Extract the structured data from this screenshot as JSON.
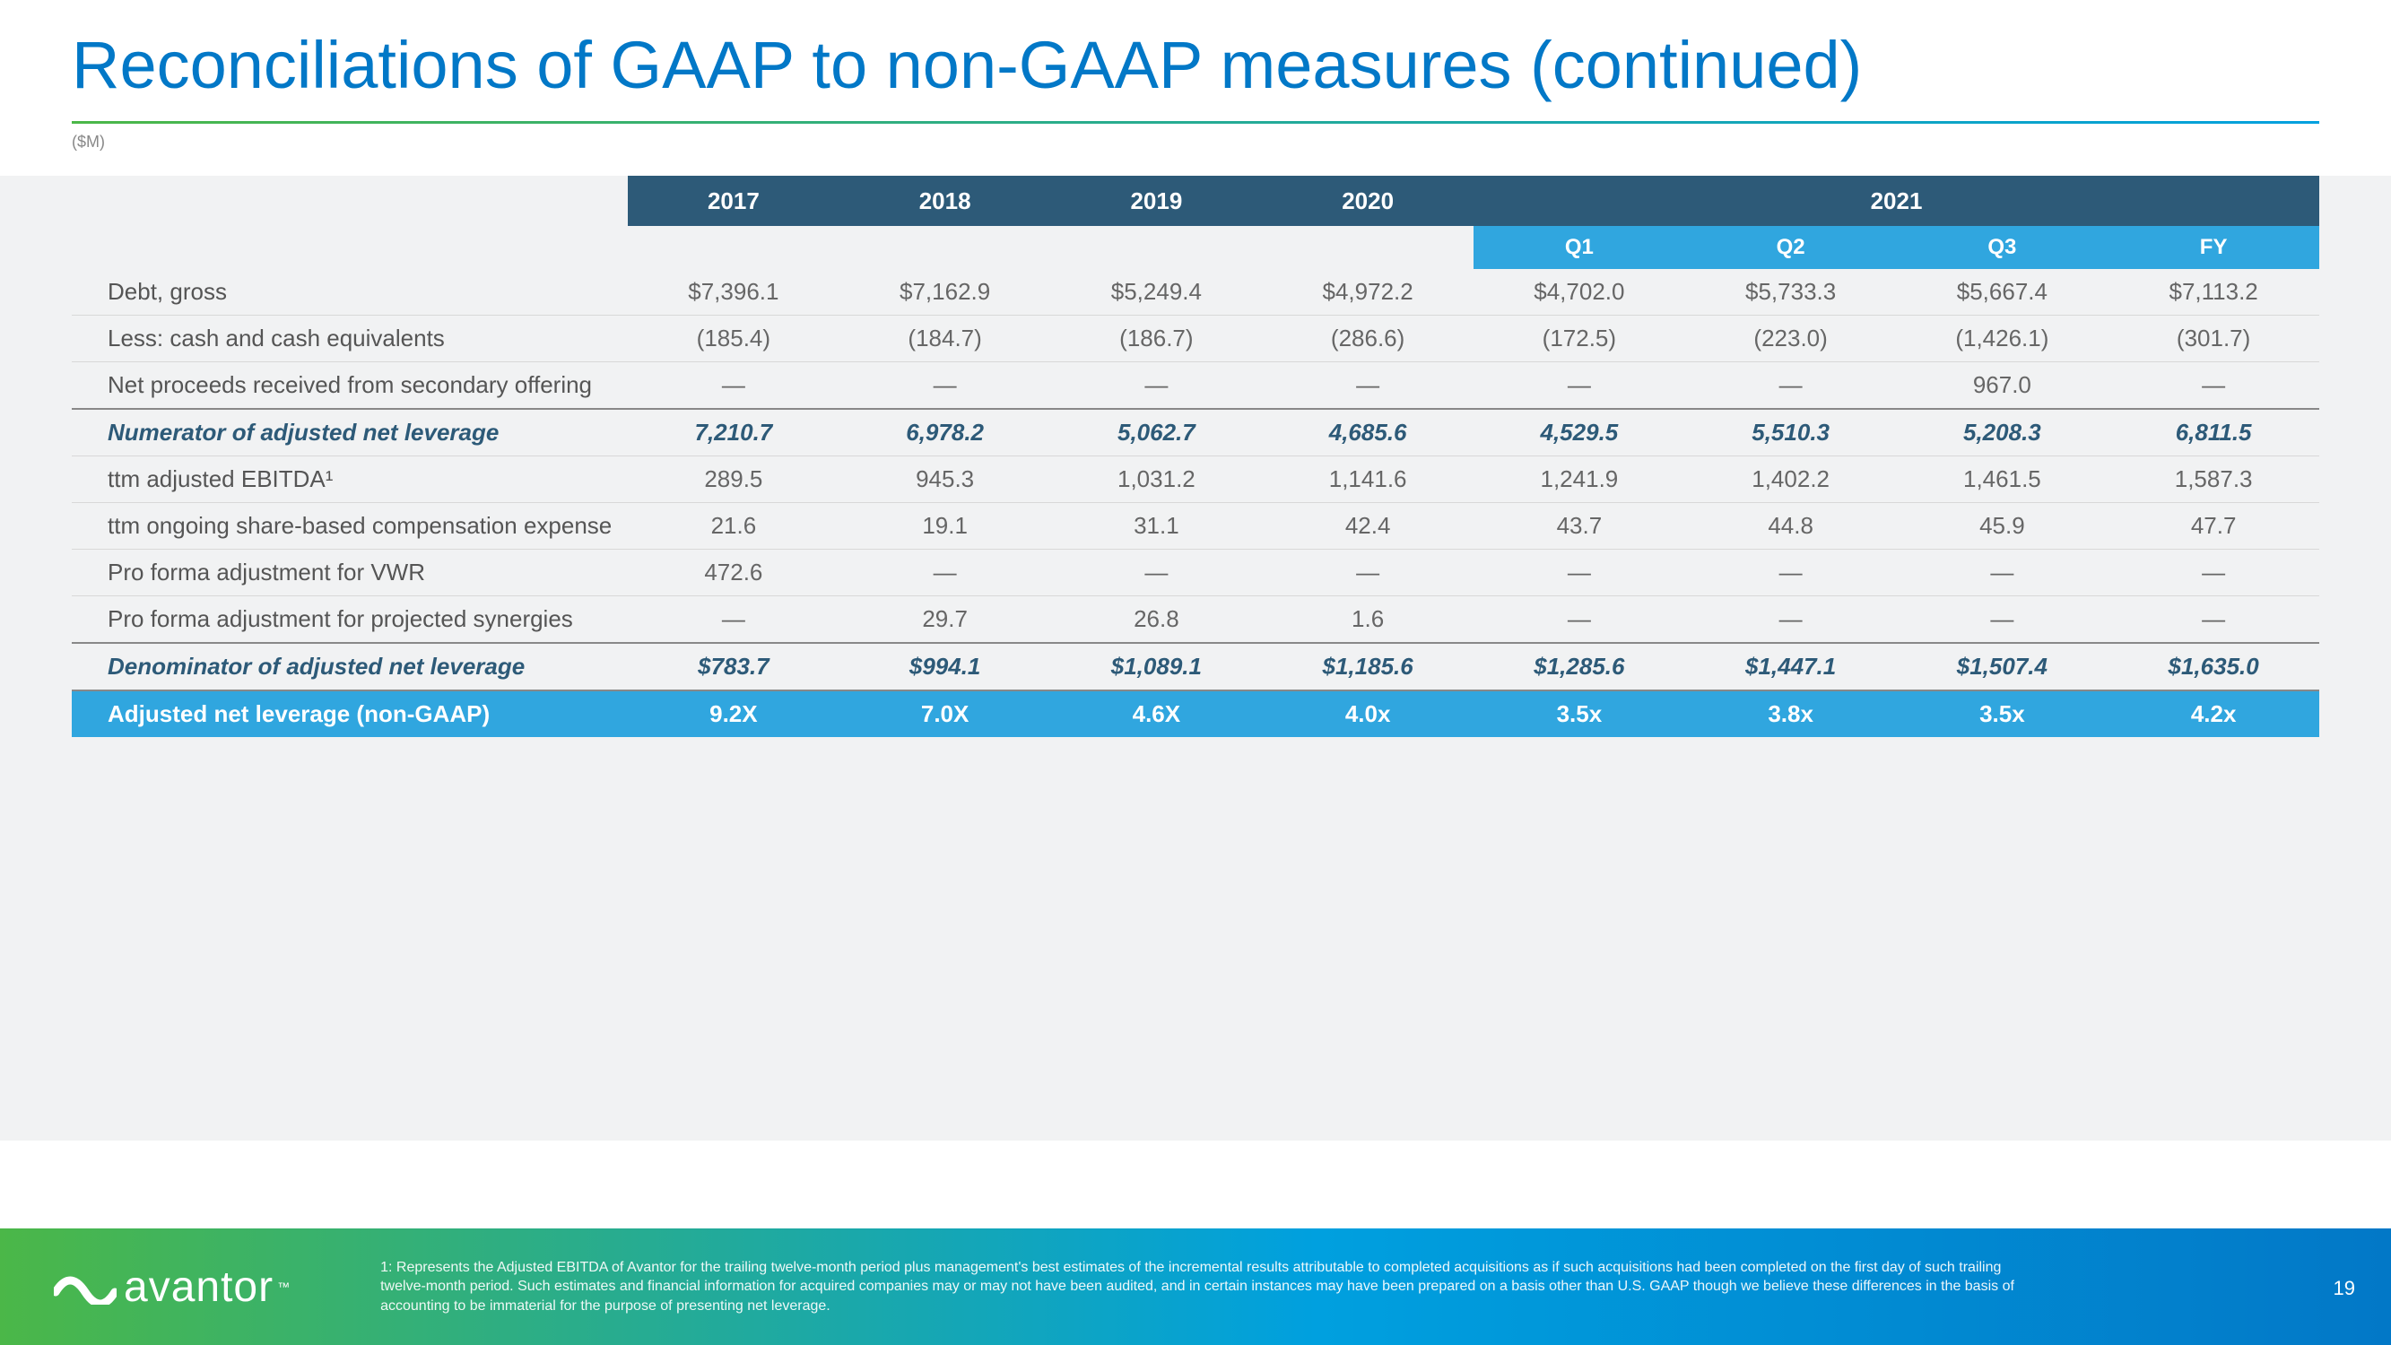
{
  "title": "Reconciliations of GAAP to non-GAAP measures (continued)",
  "units": "($M)",
  "colors": {
    "brand_blue": "#0278c7",
    "header_dark": "#2d5a78",
    "header_light": "#30a6df",
    "accent_green": "#4bb748",
    "bg_grey": "#f1f2f3"
  },
  "year_headers": [
    "",
    "2017",
    "2018",
    "2019",
    "2020",
    "2021"
  ],
  "year_span": [
    1,
    1,
    1,
    1,
    1,
    4
  ],
  "quarter_headers": [
    "",
    "",
    "",
    "",
    "",
    "Q1",
    "Q2",
    "Q3",
    "FY"
  ],
  "rows": [
    {
      "type": "data",
      "label": "Debt, gross",
      "vals": [
        "$7,396.1",
        "$7,162.9",
        "$5,249.4",
        "$4,972.2",
        "$4,702.0",
        "$5,733.3",
        "$5,667.4",
        "$7,113.2"
      ]
    },
    {
      "type": "data",
      "label": "Less: cash and cash equivalents",
      "vals": [
        "(185.4)",
        "(184.7)",
        "(186.7)",
        "(286.6)",
        "(172.5)",
        "(223.0)",
        "(1,426.1)",
        "(301.7)"
      ]
    },
    {
      "type": "data",
      "label": "Net proceeds received from secondary offering",
      "vals": [
        "—",
        "—",
        "—",
        "—",
        "—",
        "—",
        "967.0",
        "—"
      ]
    },
    {
      "type": "subtotal",
      "label": "Numerator of adjusted net leverage",
      "vals": [
        "7,210.7",
        "6,978.2",
        "5,062.7",
        "4,685.6",
        "4,529.5",
        "5,510.3",
        "5,208.3",
        "6,811.5"
      ]
    },
    {
      "type": "data",
      "label": "ttm adjusted EBITDA¹",
      "vals": [
        "289.5",
        "945.3",
        "1,031.2",
        "1,141.6",
        "1,241.9",
        "1,402.2",
        "1,461.5",
        "1,587.3"
      ]
    },
    {
      "type": "data",
      "label": "ttm ongoing share-based compensation expense",
      "vals": [
        "21.6",
        "19.1",
        "31.1",
        "42.4",
        "43.7",
        "44.8",
        "45.9",
        "47.7"
      ]
    },
    {
      "type": "data",
      "label": "Pro forma adjustment for VWR",
      "vals": [
        "472.6",
        "—",
        "—",
        "—",
        "—",
        "—",
        "—",
        "—"
      ]
    },
    {
      "type": "data",
      "label": "Pro forma adjustment for projected synergies",
      "vals": [
        "—",
        "29.7",
        "26.8",
        "1.6",
        "—",
        "—",
        "—",
        "—"
      ]
    },
    {
      "type": "subtotal",
      "label": "Denominator of adjusted net leverage",
      "vals": [
        "$783.7",
        "$994.1",
        "$1,089.1",
        "$1,185.6",
        "$1,285.6",
        "$1,447.1",
        "$1,507.4",
        "$1,635.0"
      ]
    },
    {
      "type": "final",
      "label": "Adjusted net leverage (non-GAAP)",
      "vals": [
        "9.2X",
        "7.0X",
        "4.6X",
        "4.0x",
        "3.5x",
        "3.8x",
        "3.5x",
        "4.2x"
      ]
    }
  ],
  "logo_text": "avantor",
  "logo_tm": "™",
  "footnote": "1: Represents the Adjusted EBITDA of Avantor for the trailing twelve-month period plus management's best estimates of the incremental results attributable to completed acquisitions as if such acquisitions had been completed on the first day of such trailing twelve-month period. Such estimates and financial information for acquired companies may or may not have been audited, and in certain instances may have been prepared on a basis other than U.S. GAAP though we believe these differences in the basis of accounting to be immaterial for the purpose of presenting net leverage.",
  "page_number": "19"
}
